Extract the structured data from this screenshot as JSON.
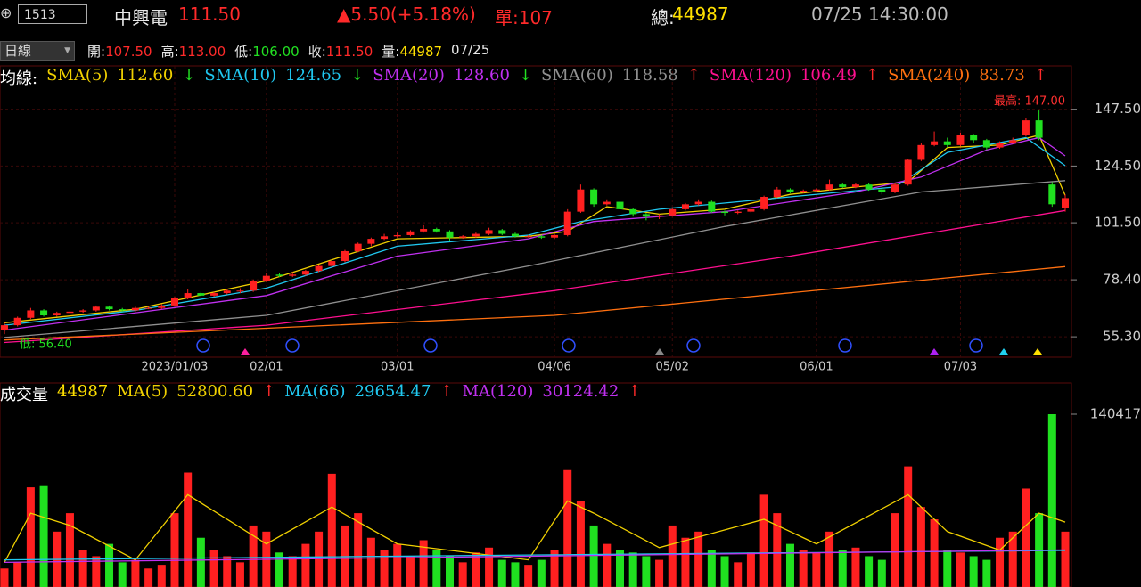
{
  "header": {
    "symbol": "1513",
    "name": "中興電",
    "price": "111.50",
    "change": "▲5.50(+5.18%)",
    "unit": "單:107",
    "total_label": "總:",
    "total": "44987",
    "time": "07/25 14:30:00"
  },
  "toolbar": {
    "period": "日線",
    "quotes": [
      {
        "label": "開:",
        "value": "107.50"
      },
      {
        "label": "高:",
        "value": "113.00"
      },
      {
        "label": "低:",
        "value": "106.00"
      },
      {
        "label": "收:",
        "value": "111.50"
      },
      {
        "label": "量:",
        "value": "44987"
      }
    ],
    "date": "07/25"
  },
  "chart_data": [
    {
      "type": "candlestick",
      "legend_title": "均線:",
      "up_color": "#ff2020",
      "down_color": "#20e020",
      "categories": [
        null,
        null,
        null,
        null,
        null,
        null,
        null,
        null,
        null,
        null,
        null,
        null,
        null,
        "2023/01/03",
        null,
        null,
        null,
        null,
        null,
        null,
        "02/01",
        null,
        null,
        null,
        null,
        null,
        null,
        null,
        null,
        null,
        "03/01",
        null,
        null,
        null,
        null,
        null,
        null,
        null,
        null,
        null,
        null,
        null,
        "04/06",
        null,
        null,
        null,
        null,
        null,
        null,
        null,
        null,
        "05/02",
        null,
        null,
        null,
        null,
        null,
        null,
        null,
        null,
        null,
        null,
        "06/01",
        null,
        null,
        null,
        null,
        null,
        null,
        null,
        null,
        null,
        null,
        "07/03",
        null,
        null,
        null,
        null,
        null,
        null,
        null,
        null
      ],
      "ohlc": [
        [
          58,
          61,
          56.4,
          60
        ],
        [
          60,
          63.5,
          59.5,
          63
        ],
        [
          63,
          67,
          62.5,
          66
        ],
        [
          66,
          66.5,
          63.5,
          64
        ],
        [
          64,
          65.5,
          63.5,
          65
        ],
        [
          65,
          66,
          64.5,
          65.5
        ],
        [
          65.5,
          66.5,
          65,
          66
        ],
        [
          66,
          68,
          65.5,
          67.5
        ],
        [
          67.5,
          68,
          66,
          66.5
        ],
        [
          66.5,
          67,
          65.5,
          66
        ],
        [
          66,
          67.5,
          65.5,
          67
        ],
        [
          67,
          67.5,
          66.5,
          67
        ],
        [
          67,
          68.5,
          66.5,
          68
        ],
        [
          68,
          71.5,
          67.5,
          71
        ],
        [
          71,
          74.5,
          70.5,
          73
        ],
        [
          73,
          73.5,
          71.5,
          72
        ],
        [
          72,
          73.5,
          71.5,
          73
        ],
        [
          73,
          74.5,
          72.5,
          74
        ],
        [
          74,
          75,
          73,
          74
        ],
        [
          74,
          78.5,
          73.5,
          78
        ],
        [
          78,
          81,
          77.5,
          80
        ],
        [
          80.5,
          81,
          79.5,
          80
        ],
        [
          80,
          81.5,
          79.5,
          80.5
        ],
        [
          80.5,
          82.5,
          80,
          82
        ],
        [
          82,
          84.5,
          81.5,
          84
        ],
        [
          84,
          86.5,
          83.5,
          86
        ],
        [
          86,
          90.5,
          85.5,
          90
        ],
        [
          90,
          93.5,
          89.5,
          93
        ],
        [
          93,
          95.5,
          92,
          95
        ],
        [
          95,
          97,
          94.5,
          96
        ],
        [
          96,
          97.5,
          95.5,
          96.5
        ],
        [
          96.5,
          98.5,
          96,
          98
        ],
        [
          98,
          100.5,
          97.5,
          99
        ],
        [
          99,
          99.5,
          97.5,
          98
        ],
        [
          98,
          98.5,
          94,
          95.5
        ],
        [
          95.5,
          96.5,
          95,
          96
        ],
        [
          96,
          97.5,
          95.5,
          97
        ],
        [
          97,
          99.5,
          96.5,
          98.5
        ],
        [
          98.5,
          99,
          96.5,
          97
        ],
        [
          97,
          97.5,
          95.5,
          96
        ],
        [
          96,
          96.5,
          95.5,
          96
        ],
        [
          96,
          96.5,
          95,
          95.5
        ],
        [
          95.5,
          97,
          95,
          96.5
        ],
        [
          96.5,
          107,
          96,
          106
        ],
        [
          106,
          117,
          105.5,
          115
        ],
        [
          115,
          115.5,
          108,
          109
        ],
        [
          109,
          111,
          108.5,
          110
        ],
        [
          110,
          110.5,
          106.5,
          107
        ],
        [
          107,
          107.5,
          104,
          105
        ],
        [
          105,
          105.5,
          102.5,
          104
        ],
        [
          104,
          105,
          103,
          104.5
        ],
        [
          104.5,
          107.5,
          104,
          107
        ],
        [
          107,
          109.5,
          106.5,
          109
        ],
        [
          109,
          111,
          108.5,
          110
        ],
        [
          110,
          110.5,
          105.5,
          106
        ],
        [
          106,
          106.5,
          104.5,
          105.5
        ],
        [
          105.5,
          106.5,
          105,
          106
        ],
        [
          106,
          107.5,
          105.5,
          107
        ],
        [
          107,
          112.5,
          106.5,
          112
        ],
        [
          112,
          116,
          111.5,
          115
        ],
        [
          115,
          115.5,
          113.5,
          114
        ],
        [
          114,
          115,
          113.5,
          114.5
        ],
        [
          114.5,
          115.5,
          114,
          115
        ],
        [
          115,
          119,
          114.5,
          117
        ],
        [
          117,
          117.5,
          115.5,
          116
        ],
        [
          116,
          117.5,
          115.5,
          117
        ],
        [
          117,
          117.5,
          114.5,
          115
        ],
        [
          115,
          115.5,
          113,
          114
        ],
        [
          114,
          117.5,
          113.5,
          117
        ],
        [
          117,
          127.5,
          116.5,
          127
        ],
        [
          127,
          134,
          126.5,
          133
        ],
        [
          133,
          138.5,
          132.5,
          134.5
        ],
        [
          134.5,
          136,
          132,
          133
        ],
        [
          133,
          138,
          132.5,
          137
        ],
        [
          137,
          137.5,
          134,
          135
        ],
        [
          135,
          135.5,
          131,
          132
        ],
        [
          132,
          134.5,
          131.5,
          134
        ],
        [
          134,
          136,
          133.5,
          135
        ],
        [
          137,
          144,
          136.5,
          143
        ],
        [
          143,
          147,
          135,
          136
        ],
        [
          117,
          118,
          108,
          109
        ],
        [
          107.5,
          113,
          106,
          111.5
        ]
      ],
      "series": [
        {
          "name": "SMA(5)",
          "color": "#f0d000",
          "legend_value": "112.60",
          "trend": "↓",
          "x": [
            0,
            10,
            20,
            30,
            40,
            43,
            46,
            50,
            55,
            60,
            65,
            69,
            72,
            76,
            79,
            81
          ],
          "values": [
            61,
            66.5,
            78,
            95,
            96,
            98,
            108,
            105,
            107,
            113,
            116,
            118,
            132,
            133,
            137,
            112.6
          ]
        },
        {
          "name": "SMA(10)",
          "color": "#20c8f0",
          "legend_value": "124.65",
          "trend": "↓",
          "x": [
            0,
            10,
            20,
            30,
            40,
            44,
            50,
            60,
            68,
            72,
            78,
            81
          ],
          "values": [
            60,
            66,
            75,
            92,
            96.5,
            102,
            107,
            112,
            116,
            130,
            136,
            124.65
          ]
        },
        {
          "name": "SMA(20)",
          "color": "#c030f0",
          "legend_value": "128.60",
          "trend": "↓",
          "x": [
            0,
            20,
            30,
            40,
            45,
            55,
            65,
            70,
            75,
            79,
            81
          ],
          "values": [
            58,
            72,
            88,
            95,
            102,
            106,
            114,
            120,
            131,
            136,
            128.6
          ]
        },
        {
          "name": "SMA(60)",
          "color": "#909090",
          "legend_value": "118.58",
          "trend": "↑",
          "x": [
            0,
            20,
            40,
            55,
            70,
            81
          ],
          "values": [
            55,
            64,
            84,
            100,
            114,
            118.58
          ]
        },
        {
          "name": "SMA(120)",
          "color": "#ff1090",
          "legend_value": "106.49",
          "trend": "↑",
          "x": [
            0,
            20,
            42,
            60,
            81
          ],
          "values": [
            53,
            60,
            74,
            88,
            106.49
          ]
        },
        {
          "name": "SMA(240)",
          "color": "#ff7010",
          "legend_value": "83.73",
          "trend": "↑",
          "x": [
            0,
            42,
            81
          ],
          "values": [
            54,
            64,
            83.73
          ]
        }
      ],
      "annotations": [
        "最高: 147.00",
        "低: 56.40"
      ],
      "ylim": [
        47.4,
        164.7
      ],
      "yticks": [
        {
          "value": 147.5,
          "label": "147.50"
        },
        {
          "value": 124.5,
          "label": "124.50"
        },
        {
          "value": 101.5,
          "label": "101.50"
        },
        {
          "value": 78.4,
          "label": "78.40"
        },
        {
          "value": 55.3,
          "label": "55.30"
        }
      ],
      "grid": true
    },
    {
      "type": "bar",
      "legend_title": "成交量",
      "legend_value": "44987",
      "values": [
        15000,
        20000,
        81000,
        82000,
        45000,
        60000,
        30000,
        25000,
        35000,
        20000,
        22000,
        15000,
        18000,
        60000,
        93000,
        40000,
        30000,
        25000,
        20000,
        50000,
        45000,
        28000,
        25000,
        35000,
        45000,
        92000,
        50000,
        60000,
        40000,
        30000,
        35000,
        25000,
        38000,
        30000,
        25000,
        20000,
        28000,
        32000,
        22000,
        20000,
        18000,
        22000,
        30000,
        95000,
        70000,
        50000,
        35000,
        30000,
        28000,
        25000,
        22000,
        50000,
        40000,
        45000,
        30000,
        25000,
        20000,
        28000,
        75000,
        60000,
        35000,
        30000,
        28000,
        45000,
        30000,
        32000,
        25000,
        22000,
        60000,
        98000,
        65000,
        55000,
        30000,
        28000,
        25000,
        22000,
        40000,
        45000,
        80000,
        60000,
        140417,
        44987
      ],
      "series": [
        {
          "name": "MA(5)",
          "color": "#f0d000",
          "legend_value": "52800.60",
          "trend": "↑",
          "x": [
            0,
            2,
            5,
            10,
            14,
            20,
            25,
            30,
            40,
            43,
            45,
            50,
            58,
            62,
            69,
            72,
            76,
            79,
            81
          ],
          "values": [
            20000,
            60000,
            50000,
            22000,
            75000,
            35000,
            65000,
            35000,
            22000,
            70000,
            60000,
            32000,
            55000,
            35000,
            75000,
            45000,
            30000,
            60000,
            52800.6
          ]
        },
        {
          "name": "MA(66)",
          "color": "#20c8f0",
          "legend_value": "29654.47",
          "trend": "↑",
          "x": [
            0,
            40,
            81
          ],
          "values": [
            22000,
            26000,
            29654.47
          ]
        },
        {
          "name": "MA(120)",
          "color": "#c030f0",
          "legend_value": "30124.42",
          "trend": "↑",
          "x": [
            0,
            81
          ],
          "values": [
            20000,
            30124.42
          ]
        }
      ],
      "ylim": [
        0,
        165750
      ],
      "yticks": [
        140417
      ],
      "grid": false
    }
  ]
}
